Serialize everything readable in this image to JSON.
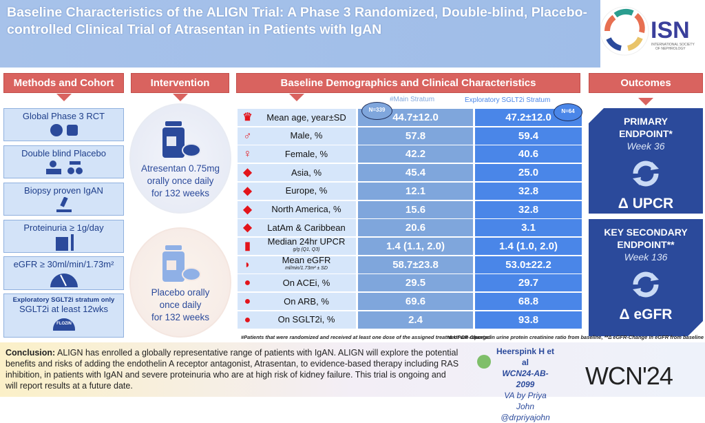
{
  "title": "Baseline Characteristics of the ALIGN Trial: A Phase 3 Randomized, Double-blind, Placebo-controlled Clinical Trial of Atrasentan in Patients with IgAN",
  "logo": {
    "name": "ISN",
    "subtitle": "INTERNATIONAL SOCIETY OF NEPHROLOGY"
  },
  "headers": {
    "methods": "Methods and Cohort",
    "intervention": "Intervention",
    "baseline": "Baseline Demographics and Clinical Characteristics",
    "outcomes": "Outcomes"
  },
  "methods": [
    {
      "label": "Global Phase 3 RCT",
      "icon": "globe-dice-icon"
    },
    {
      "label": "Double blind Placebo",
      "icon": "blinded-people-icon"
    },
    {
      "label": "Biopsy proven IgAN",
      "icon": "microscope-icon"
    },
    {
      "label": "Proteinuria ≥ 1g/day",
      "icon": "urine-cup-icon"
    },
    {
      "label": "eGFR ≥ 30ml/min/1.73m²",
      "icon": "gauge-icon"
    },
    {
      "label": "SGLT2i at least 12wks",
      "sublabel": "Exploratory SGLT2i stratum only",
      "icon": "flozin-pill-icon"
    }
  ],
  "intervention": [
    {
      "text": [
        "Atresentan 0.75mg",
        "orally once daily",
        "for 132 weeks"
      ],
      "color": "#2b4a9b"
    },
    {
      "text": [
        "Placebo orally",
        "once daily",
        "for 132 weeks"
      ],
      "color": "#8fb0e6"
    }
  ],
  "table": {
    "col_main": "#Main Stratum",
    "col_explo": "Exploratory SGLT2i Stratum",
    "n_main": "N=339",
    "n_explo": "N=64",
    "rows": [
      {
        "label": "Mean age, year±SD",
        "icon": "cake-icon",
        "glyph": "♛",
        "main": "44.7±12.0",
        "explo": "47.2±12.0"
      },
      {
        "label": "Male, %",
        "icon": "male-icon",
        "glyph": "♂",
        "main": "57.8",
        "explo": "59.4"
      },
      {
        "label": "Female, %",
        "icon": "female-icon",
        "glyph": "♀",
        "main": "42.2",
        "explo": "40.6"
      },
      {
        "label": "Asia, %",
        "icon": "asia-map-icon",
        "glyph": "◆",
        "main": "45.4",
        "explo": "25.0"
      },
      {
        "label": "Europe, %",
        "icon": "europe-map-icon",
        "glyph": "◆",
        "main": "12.1",
        "explo": "32.8"
      },
      {
        "label": "North America, %",
        "icon": "north-america-map-icon",
        "glyph": "◆",
        "main": "15.6",
        "explo": "32.8"
      },
      {
        "label": "LatAm & Caribbean",
        "icon": "latam-map-icon",
        "glyph": "◆",
        "main": "20.6",
        "explo": "3.1"
      },
      {
        "label": "Median 24hr UPCR",
        "sub": "g/g (Q1, Q3)",
        "icon": "urine-cup-icon",
        "glyph": "▮",
        "main": "1.4 (1.1, 2.0)",
        "explo": "1.4 (1.0, 2.0)"
      },
      {
        "label": "Mean eGFR",
        "sub": "ml/min/1.73m² ± SD",
        "icon": "gauge-icon",
        "glyph": "◗",
        "main": "58.7±23.8",
        "explo": "53.0±22.2"
      },
      {
        "label": "On ACEi, %",
        "icon": "acei-pill-icon",
        "glyph": "●",
        "main": "29.5",
        "explo": "29.7"
      },
      {
        "label": "On ARB, %",
        "icon": "arb-pill-icon",
        "glyph": "●",
        "main": "69.6",
        "explo": "68.8"
      },
      {
        "label": "On SGLT2i, %",
        "icon": "flozin-pill-icon",
        "glyph": "●",
        "main": "2.4",
        "explo": "93.8"
      }
    ],
    "footnote": "#Patients that were randomized and received at least one dose of the assigned treatment are reported"
  },
  "outcomes": [
    {
      "title": "PRIMARY",
      "title2": "ENDPOINT*",
      "week": "Week 36",
      "delta": "Δ UPCR"
    },
    {
      "title": "KEY SECONDARY",
      "title2": "ENDPOINT**",
      "week": "Week 136",
      "delta": "Δ eGFR"
    }
  ],
  "outcome_footnote": "*Δ UPCR-Change in urine protein creatinine ratio from baseline, **Δ eGFR-Change in eGFR from baseline",
  "conclusion": {
    "label": "Conclusion:",
    "text": " ALIGN has enrolled a globally representative range of patients with IgAN. ALIGN will explore the potential benefits and risks of adding the endothelin A receptor antagonist, Atrasentan, to evidence-based therapy including RAS inhibition, in patients with IgAN and severe proteinuria who are at high risk of kidney failure. This trial is ongoing and will report results at a future date."
  },
  "credits": {
    "author": "Heerspink H et al",
    "abstract": "WCN24-AB-2099",
    "va": "VA by Priya John",
    "handle": "@drpriyajohn"
  },
  "wcn_logo": "WCN'24",
  "colors": {
    "title_bg": "#a7c2ea",
    "header_red": "#d9635f",
    "navy": "#2b4a9b",
    "main_col": "#7fa6dc",
    "explo_col": "#4a86e8",
    "icon_red": "#e3141b"
  }
}
